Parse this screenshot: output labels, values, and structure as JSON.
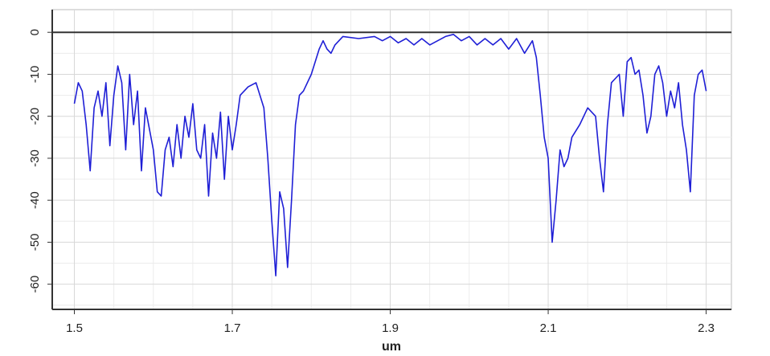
{
  "chart_data": {
    "type": "line",
    "x_label": "um",
    "xlim": [
      1.472,
      2.332
    ],
    "ylim": [
      -66,
      5.4
    ],
    "xticks": [
      1.5,
      1.7,
      1.9,
      2.1,
      2.3
    ],
    "yticks": [
      0,
      -10,
      -20,
      -30,
      -40,
      -50,
      -60
    ],
    "x_minor_ticks": [
      1.55,
      1.6,
      1.65,
      1.75,
      1.8,
      1.85,
      1.95,
      2.0,
      2.05,
      2.15,
      2.2,
      2.25
    ],
    "y_minor_ticks": [
      -5,
      -15,
      -25,
      -35,
      -45,
      -55,
      -65
    ],
    "grid": true,
    "color": "#1f1fd6",
    "x": [
      1.5,
      1.505,
      1.51,
      1.515,
      1.52,
      1.525,
      1.53,
      1.535,
      1.54,
      1.545,
      1.55,
      1.555,
      1.56,
      1.565,
      1.57,
      1.575,
      1.58,
      1.585,
      1.59,
      1.6,
      1.605,
      1.61,
      1.615,
      1.62,
      1.625,
      1.63,
      1.635,
      1.64,
      1.645,
      1.65,
      1.655,
      1.66,
      1.665,
      1.67,
      1.675,
      1.68,
      1.685,
      1.69,
      1.695,
      1.7,
      1.705,
      1.71,
      1.72,
      1.73,
      1.74,
      1.745,
      1.75,
      1.755,
      1.76,
      1.765,
      1.77,
      1.775,
      1.78,
      1.785,
      1.79,
      1.8,
      1.81,
      1.815,
      1.82,
      1.825,
      1.83,
      1.84,
      1.86,
      1.88,
      1.89,
      1.9,
      1.91,
      1.92,
      1.93,
      1.94,
      1.95,
      1.96,
      1.97,
      1.98,
      1.99,
      2.0,
      2.01,
      2.02,
      2.03,
      2.04,
      2.05,
      2.06,
      2.07,
      2.08,
      2.085,
      2.09,
      2.095,
      2.1,
      2.105,
      2.11,
      2.115,
      2.12,
      2.125,
      2.13,
      2.14,
      2.15,
      2.16,
      2.165,
      2.17,
      2.175,
      2.18,
      2.19,
      2.195,
      2.2,
      2.205,
      2.21,
      2.215,
      2.22,
      2.225,
      2.23,
      2.235,
      2.24,
      2.245,
      2.25,
      2.255,
      2.26,
      2.265,
      2.27,
      2.275,
      2.28,
      2.285,
      2.29,
      2.295,
      2.3
    ],
    "values": [
      -17,
      -12,
      -14,
      -22,
      -33,
      -18,
      -14,
      -20,
      -12,
      -27,
      -15,
      -8,
      -12,
      -28,
      -10,
      -22,
      -14,
      -33,
      -18,
      -28,
      -38,
      -39,
      -28,
      -25,
      -32,
      -22,
      -30,
      -20,
      -25,
      -17,
      -28,
      -30,
      -22,
      -39,
      -24,
      -30,
      -19,
      -35,
      -20,
      -28,
      -22,
      -15,
      -13,
      -12,
      -18,
      -30,
      -45,
      -58,
      -38,
      -42,
      -56,
      -40,
      -22,
      -15,
      -14,
      -10,
      -4,
      -2,
      -4,
      -5,
      -3,
      -1,
      -1.5,
      -1,
      -2,
      -1,
      -2.5,
      -1.5,
      -3,
      -1.5,
      -3,
      -2,
      -1,
      -0.5,
      -2,
      -1,
      -3,
      -1.5,
      -3,
      -1.5,
      -4,
      -1.5,
      -5,
      -2,
      -6,
      -15,
      -25,
      -30,
      -50,
      -40,
      -28,
      -32,
      -30,
      -25,
      -22,
      -18,
      -20,
      -30,
      -38,
      -22,
      -12,
      -10,
      -20,
      -7,
      -6,
      -10,
      -9,
      -15,
      -24,
      -20,
      -10,
      -8,
      -12,
      -20,
      -14,
      -18,
      -12,
      -22,
      -28,
      -38,
      -15,
      -10,
      -9,
      -14
    ]
  }
}
